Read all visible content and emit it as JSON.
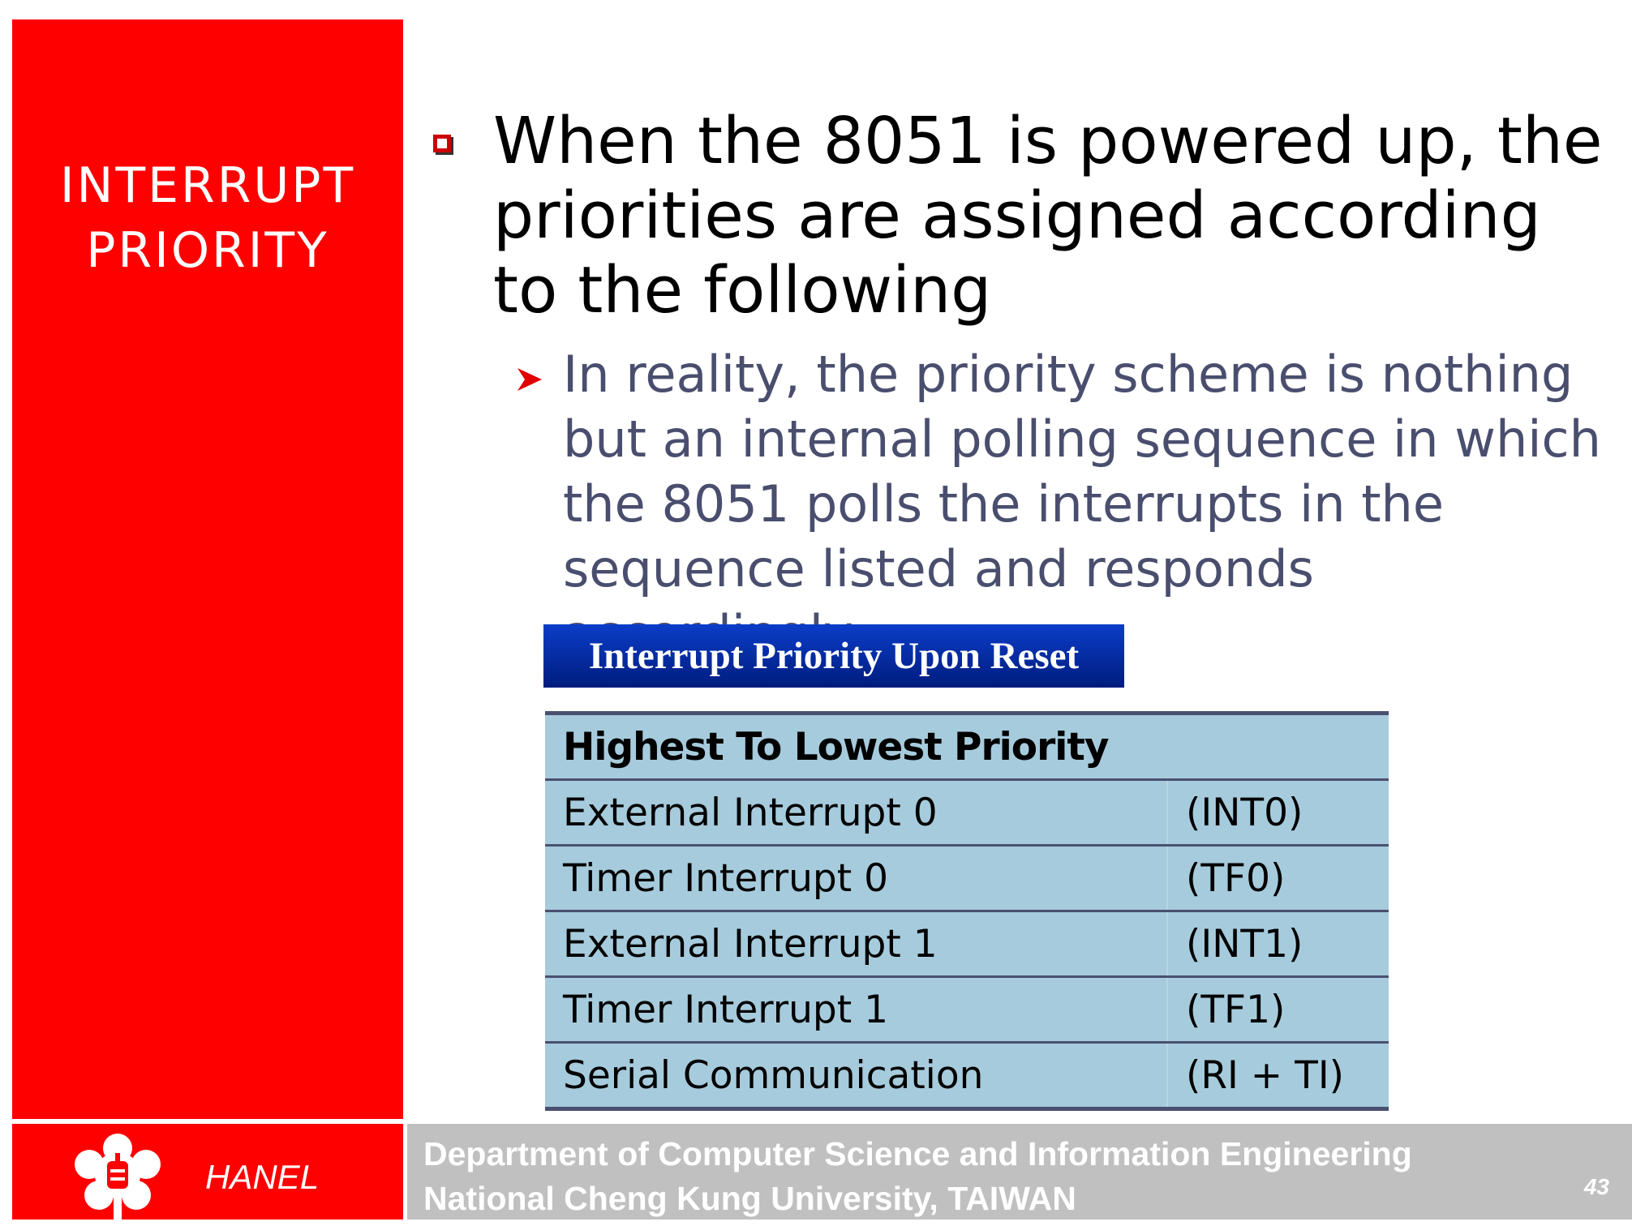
{
  "sidebar": {
    "title_lines": [
      "INTERRUPT",
      "PRIORITY"
    ]
  },
  "content": {
    "bullet": "When the 8051 is powered up, the priorities are assigned according to the following",
    "sub_bullet": "In reality, the priority scheme is nothing but an internal polling sequence in which the 8051 polls the interrupts in the sequence listed and responds accordingly"
  },
  "caption": "Interrupt Priority Upon Reset",
  "table": {
    "header": "Highest To Lowest Priority",
    "rows": [
      {
        "name": "External Interrupt 0",
        "code": "(INT0)"
      },
      {
        "name": "Timer Interrupt 0",
        "code": "(TF0)"
      },
      {
        "name": "External Interrupt 1",
        "code": "(INT1)"
      },
      {
        "name": "Timer Interrupt 1",
        "code": "(TF1)"
      },
      {
        "name": "Serial Communication",
        "code": "(RI + TI)"
      }
    ]
  },
  "footer": {
    "brand": "HANEL",
    "dept_lines": [
      "Department of Computer Science and Information Engineering",
      "National Cheng Kung University, TAIWAN"
    ],
    "page_number": "43"
  },
  "colors": {
    "sidebar": "#ff0000",
    "footer_bar": "#c0c0c0",
    "caption_bg": "#0b3dc8",
    "table_bg": "#a6cbdc",
    "sub_bullet_text": "#4a4e6e"
  },
  "icons": {
    "bullet": "square-bullet-icon",
    "sub_bullet": "arrow-bullet-icon",
    "logo": "university-emblem-icon"
  }
}
